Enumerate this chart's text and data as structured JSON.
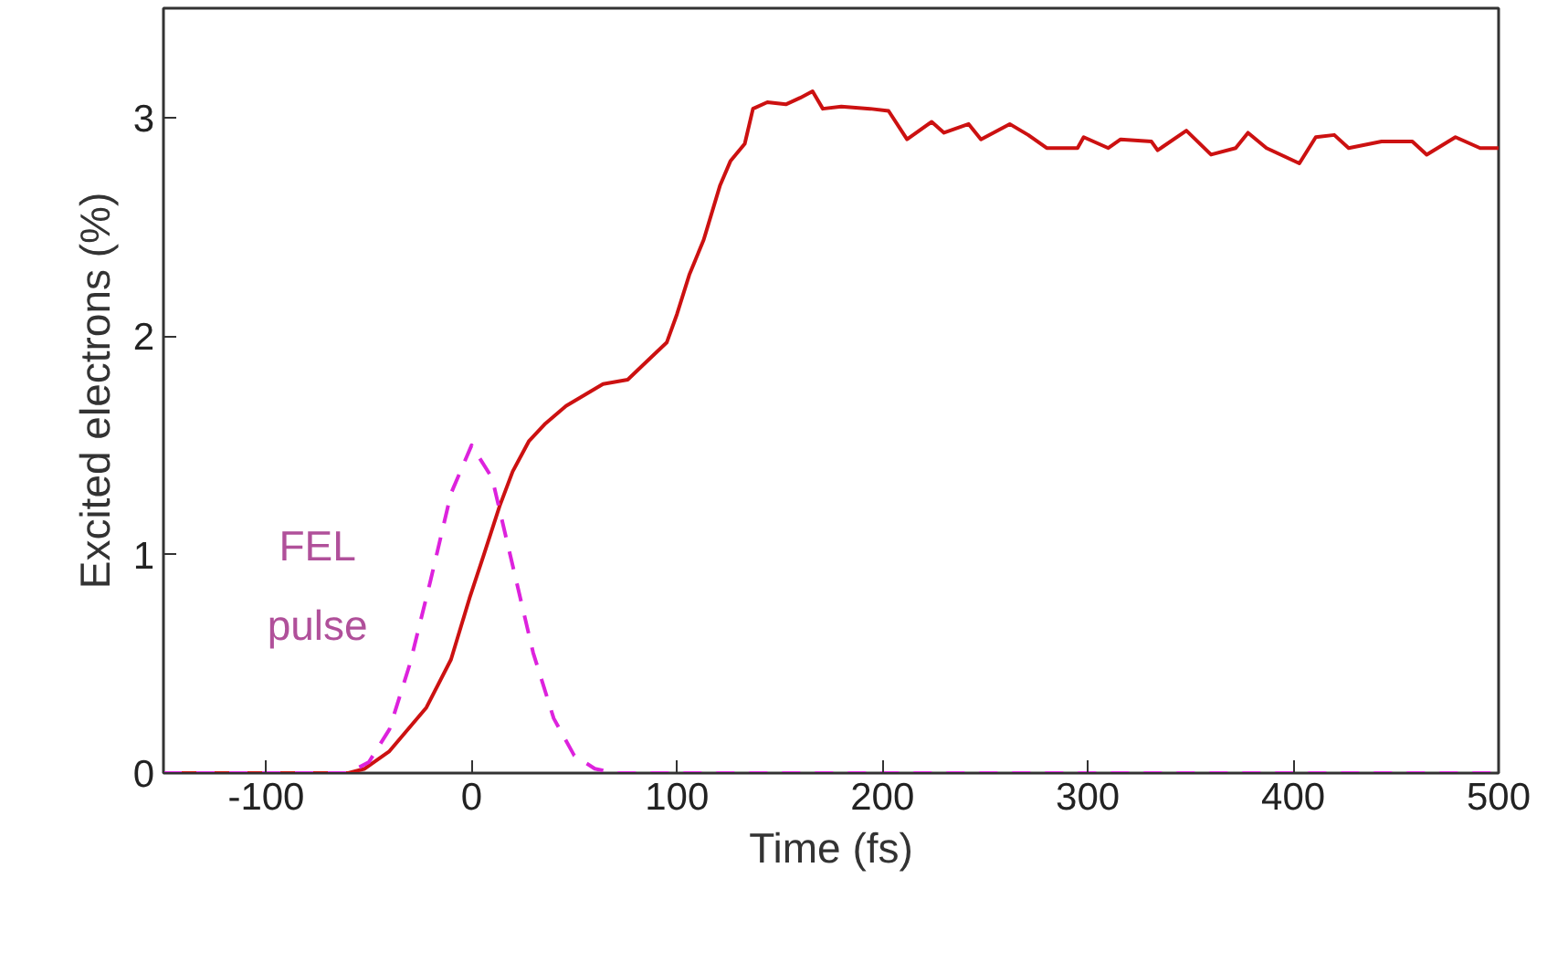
{
  "chart_data": {
    "type": "line",
    "xlabel": "Time (fs)",
    "ylabel": "Excited electrons (%)",
    "xlim": [
      -150,
      500
    ],
    "ylim": [
      0,
      3.5
    ],
    "xticks": [
      -100,
      0,
      100,
      200,
      300,
      400,
      500
    ],
    "yticks": [
      0,
      1,
      2,
      3
    ],
    "grid": false,
    "legend": false,
    "series": [
      {
        "color": "#cc1111",
        "line_style": "solid",
        "x": [
          -150,
          -60,
          -52,
          -40,
          -22,
          -10,
          -1,
          6,
          13.6,
          20,
          28,
          36,
          46,
          55,
          64,
          76,
          86,
          95,
          100,
          106,
          113,
          121,
          126,
          133,
          137,
          144,
          153,
          160,
          166,
          171,
          180,
          194,
          203,
          212,
          224,
          230,
          242,
          248,
          262,
          271,
          280,
          295,
          298,
          310,
          316,
          331,
          334,
          348,
          360,
          372,
          378,
          387,
          403,
          411,
          420,
          427,
          443,
          458,
          465,
          479,
          491,
          500
        ],
        "values": [
          0,
          0,
          0.02,
          0.1,
          0.3,
          0.52,
          0.8,
          1.0,
          1.22,
          1.38,
          1.52,
          1.6,
          1.68,
          1.73,
          1.78,
          1.8,
          1.89,
          1.97,
          2.1,
          2.28,
          2.44,
          2.69,
          2.8,
          2.88,
          3.04,
          3.07,
          3.06,
          3.09,
          3.12,
          3.04,
          3.05,
          3.04,
          3.03,
          2.9,
          2.98,
          2.93,
          2.97,
          2.9,
          2.97,
          2.92,
          2.86,
          2.86,
          2.91,
          2.86,
          2.9,
          2.89,
          2.85,
          2.94,
          2.83,
          2.86,
          2.93,
          2.86,
          2.79,
          2.91,
          2.92,
          2.86,
          2.89,
          2.89,
          2.83,
          2.91,
          2.86,
          2.86
        ]
      },
      {
        "name": "FEL pulse",
        "color": "#dd22dd",
        "line_style": "dashed",
        "x": [
          -150,
          -60,
          -50,
          -40,
          -30,
          -20,
          -10,
          0,
          10,
          20,
          30,
          40,
          50,
          60,
          70,
          500
        ],
        "values": [
          0,
          0,
          0.05,
          0.2,
          0.5,
          0.88,
          1.28,
          1.5,
          1.35,
          0.95,
          0.55,
          0.25,
          0.08,
          0.02,
          0,
          0
        ]
      }
    ]
  }
}
